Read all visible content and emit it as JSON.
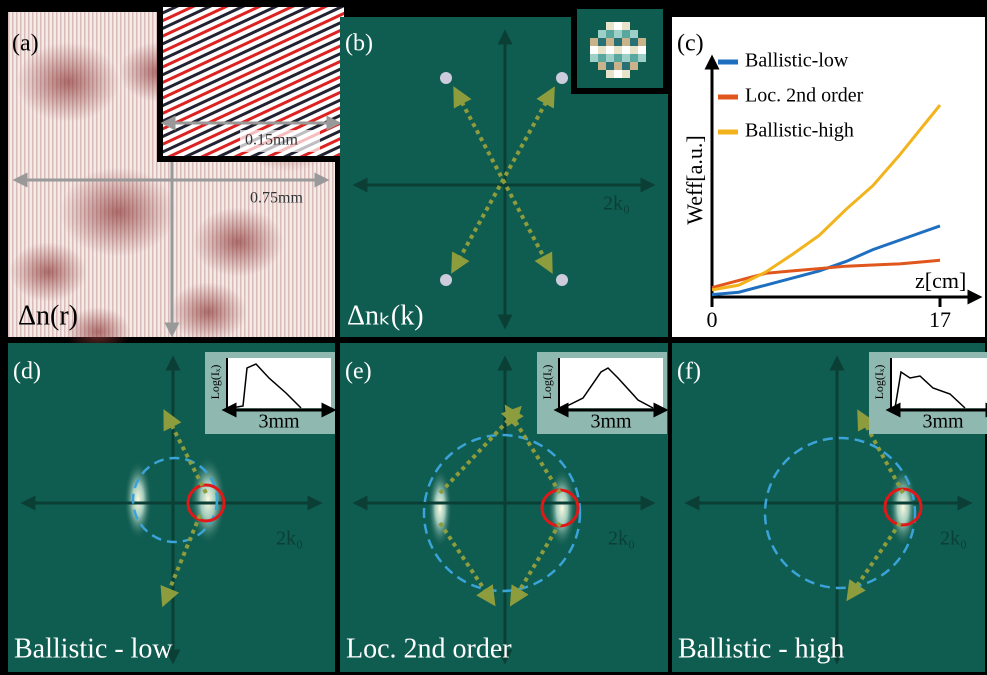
{
  "panel_a": {
    "label": "(a)",
    "inset_scale": "0.15mm",
    "scale": "0.75mm",
    "caption": "Δn(r)"
  },
  "panel_b": {
    "label": "(b)",
    "k_label": "2k₀",
    "caption": "Δnₖ(k)"
  },
  "chart_data": {
    "type": "line",
    "label": "(c)",
    "xlabel": "z[cm]",
    "ylabel": "Weff[a.u.]",
    "x": [
      0,
      2,
      4,
      6,
      8,
      10,
      12,
      14,
      16,
      17
    ],
    "xlim": [
      0,
      17
    ],
    "xticks": [
      0,
      17
    ],
    "ylim": [
      0,
      10
    ],
    "series": [
      {
        "name": "Ballistic-low",
        "color": "#1f6fc0",
        "values": [
          0.1,
          0.2,
          0.5,
          0.8,
          1.1,
          1.5,
          2.0,
          2.4,
          2.8,
          3.0
        ]
      },
      {
        "name": "Loc. 2nd order",
        "color": "#e0561c",
        "values": [
          0.4,
          0.7,
          1.0,
          1.1,
          1.2,
          1.3,
          1.35,
          1.4,
          1.5,
          1.55
        ]
      },
      {
        "name": "Ballistic-high",
        "color": "#f2b31c",
        "values": [
          0.3,
          0.5,
          1.05,
          1.8,
          2.6,
          3.7,
          4.7,
          6.0,
          7.4,
          8.1
        ]
      }
    ]
  },
  "panel_d": {
    "label": "(d)",
    "inset_ylabel": "Log(Iₓ)",
    "inset_scale": "3mm",
    "k_label": "2k₀",
    "caption": "Ballistic - low"
  },
  "panel_e": {
    "label": "(e)",
    "inset_ylabel": "Log(Iₓ)",
    "inset_scale": "3mm",
    "k_label": "2k₀",
    "caption": "Loc. 2nd order"
  },
  "panel_f": {
    "label": "(f)",
    "inset_ylabel": "Log(Iₓ)",
    "inset_scale": "3mm",
    "k_label": "2k₀",
    "caption": "Ballistic - high"
  }
}
